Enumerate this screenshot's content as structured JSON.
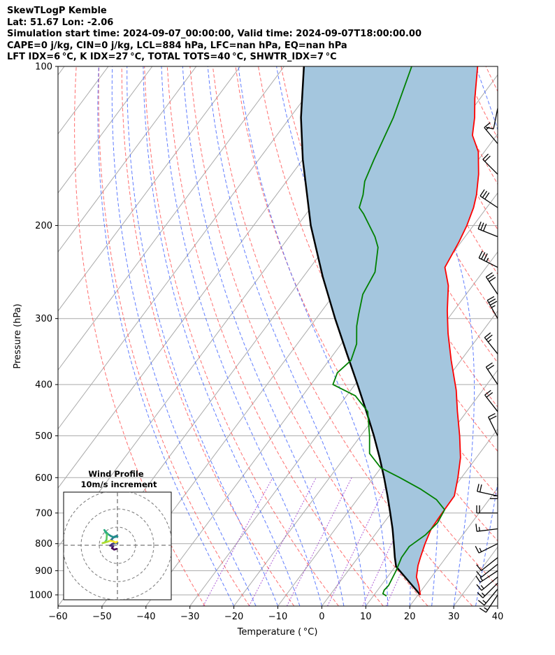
{
  "title_lines": [
    "SkewTLogP Kemble",
    "Lat: 51.67   Lon: -2.06",
    "Simulation start time: 2024-09-07_00:00:00, Valid time: 2024-09-07T18:00:00.00",
    "CAPE=0 j/kg, CIN=0 j/kg, LCL=884 hPa, LFC=nan hPa, EQ=nan hPa",
    "LFT IDX=6 °C, K IDX=27 °C, TOTAL TOTS=40 °C, SHWTR_IDX=7 °C"
  ],
  "chart_data": {
    "type": "skewt",
    "xlabel": "Temperature ( °C)",
    "ylabel": "Pressure (hPa)",
    "xlim": [
      -60,
      40
    ],
    "ylim": [
      1050,
      100
    ],
    "x_ticks": [
      "−60",
      "−50",
      "−40",
      "−30",
      "−20",
      "−10",
      "0",
      "10",
      "20",
      "30",
      "40"
    ],
    "x_tick_values": [
      -60,
      -50,
      -40,
      -30,
      -20,
      -10,
      0,
      10,
      20,
      30,
      40
    ],
    "y_ticks": [
      "100",
      "200",
      "300",
      "400",
      "500",
      "600",
      "700",
      "800",
      "900",
      "1000"
    ],
    "y_tick_values": [
      100,
      200,
      300,
      400,
      500,
      600,
      700,
      800,
      900,
      1000
    ],
    "colors": {
      "temperature": "#ff0000",
      "dewpoint": "#008000",
      "parcel": "#000000",
      "shade": "#a4c6de",
      "dry_adiabat": "#ff5555",
      "moist_adiabat": "#4466ff",
      "mixing_ratio": "#9933cc",
      "isotherm": "#aaaaaa"
    },
    "temperature": [
      {
        "p": 1000,
        "t": 20.5
      },
      {
        "p": 960,
        "t": 18.6
      },
      {
        "p": 925,
        "t": 16.6
      },
      {
        "p": 880,
        "t": 15.0
      },
      {
        "p": 850,
        "t": 14.2
      },
      {
        "p": 800,
        "t": 12.9
      },
      {
        "p": 750,
        "t": 11.8
      },
      {
        "p": 700,
        "t": 11.6
      },
      {
        "p": 650,
        "t": 11.5
      },
      {
        "p": 600,
        "t": 9.2
      },
      {
        "p": 550,
        "t": 6.4
      },
      {
        "p": 500,
        "t": 2.5
      },
      {
        "p": 450,
        "t": -2.1
      },
      {
        "p": 410,
        "t": -6.0
      },
      {
        "p": 360,
        "t": -12.2
      },
      {
        "p": 320,
        "t": -17.5
      },
      {
        "p": 290,
        "t": -21.5
      },
      {
        "p": 260,
        "t": -25.5
      },
      {
        "p": 240,
        "t": -29.4
      },
      {
        "p": 215,
        "t": -30.5
      },
      {
        "p": 200,
        "t": -31.5
      },
      {
        "p": 185,
        "t": -33.0
      },
      {
        "p": 175,
        "t": -34.5
      },
      {
        "p": 160,
        "t": -37.5
      },
      {
        "p": 145,
        "t": -41.4
      },
      {
        "p": 135,
        "t": -45.5
      },
      {
        "p": 125,
        "t": -48.0
      },
      {
        "p": 115,
        "t": -51.2
      },
      {
        "p": 100,
        "t": -56.0
      }
    ],
    "dewpoint": [
      {
        "p": 1005,
        "t": 13.0
      },
      {
        "p": 995,
        "t": 11.8
      },
      {
        "p": 980,
        "t": 11.5
      },
      {
        "p": 960,
        "t": 11.7
      },
      {
        "p": 900,
        "t": 10.9
      },
      {
        "p": 850,
        "t": 9.9
      },
      {
        "p": 810,
        "t": 9.8
      },
      {
        "p": 770,
        "t": 11.5
      },
      {
        "p": 730,
        "t": 12.2
      },
      {
        "p": 690,
        "t": 11.6
      },
      {
        "p": 660,
        "t": 8.0
      },
      {
        "p": 630,
        "t": 2.5
      },
      {
        "p": 600,
        "t": -4.0
      },
      {
        "p": 575,
        "t": -10.0
      },
      {
        "p": 540,
        "t": -15.0
      },
      {
        "p": 500,
        "t": -18.0
      },
      {
        "p": 450,
        "t": -22.5
      },
      {
        "p": 420,
        "t": -28.0
      },
      {
        "p": 400,
        "t": -35.0
      },
      {
        "p": 380,
        "t": -36.0
      },
      {
        "p": 360,
        "t": -35.0
      },
      {
        "p": 335,
        "t": -36.5
      },
      {
        "p": 310,
        "t": -39.5
      },
      {
        "p": 295,
        "t": -41.0
      },
      {
        "p": 270,
        "t": -43.5
      },
      {
        "p": 245,
        "t": -44.5
      },
      {
        "p": 220,
        "t": -48.0
      },
      {
        "p": 210,
        "t": -50.5
      },
      {
        "p": 190,
        "t": -57.0
      },
      {
        "p": 185,
        "t": -59.0
      },
      {
        "p": 175,
        "t": -60.3
      },
      {
        "p": 165,
        "t": -62.2
      },
      {
        "p": 150,
        "t": -63.8
      },
      {
        "p": 125,
        "t": -66.5
      },
      {
        "p": 100,
        "t": -71.0
      }
    ],
    "parcel": [
      {
        "p": 1000,
        "t": 20.5
      },
      {
        "p": 884,
        "t": 10.2
      },
      {
        "p": 850,
        "t": 8.4
      },
      {
        "p": 800,
        "t": 5.8
      },
      {
        "p": 750,
        "t": 3.0
      },
      {
        "p": 700,
        "t": -0.2
      },
      {
        "p": 650,
        "t": -3.7
      },
      {
        "p": 600,
        "t": -7.6
      },
      {
        "p": 550,
        "t": -12.0
      },
      {
        "p": 500,
        "t": -17.0
      },
      {
        "p": 450,
        "t": -22.8
      },
      {
        "p": 400,
        "t": -29.4
      },
      {
        "p": 350,
        "t": -37.0
      },
      {
        "p": 300,
        "t": -45.7
      },
      {
        "p": 250,
        "t": -55.6
      },
      {
        "p": 200,
        "t": -67.0
      },
      {
        "p": 150,
        "t": -80.0
      },
      {
        "p": 125,
        "t": -87.5
      },
      {
        "p": 100,
        "t": -95.5
      }
    ],
    "wind_barbs": [
      {
        "p": 1000,
        "u": 4,
        "v": 6
      },
      {
        "p": 975,
        "u": 5,
        "v": 6
      },
      {
        "p": 950,
        "u": 6,
        "v": 6
      },
      {
        "p": 925,
        "u": 6,
        "v": 5
      },
      {
        "p": 900,
        "u": 6,
        "v": 4
      },
      {
        "p": 875,
        "u": 5,
        "v": 4
      },
      {
        "p": 850,
        "u": 5,
        "v": 4
      },
      {
        "p": 800,
        "u": 6,
        "v": 3
      },
      {
        "p": 750,
        "u": 8,
        "v": 1
      },
      {
        "p": 700,
        "u": 11,
        "v": 0
      },
      {
        "p": 650,
        "u": 9,
        "v": -2
      },
      {
        "p": 600,
        "u": 0,
        "v": 8
      },
      {
        "p": 500,
        "u": 5,
        "v": -10
      },
      {
        "p": 450,
        "u": 7,
        "v": -9
      },
      {
        "p": 400,
        "u": 6,
        "v": -9
      },
      {
        "p": 350,
        "u": 8,
        "v": -10
      },
      {
        "p": 300,
        "u": 9,
        "v": -16
      },
      {
        "p": 270,
        "u": 8,
        "v": -12
      },
      {
        "p": 240,
        "u": 16,
        "v": -8
      },
      {
        "p": 210,
        "u": 15,
        "v": -6
      },
      {
        "p": 185,
        "u": 12,
        "v": -8
      },
      {
        "p": 160,
        "u": 8,
        "v": -8
      },
      {
        "p": 140,
        "u": 5,
        "v": -6
      },
      {
        "p": 120,
        "u": 1,
        "v": 5
      }
    ],
    "hodograph": {
      "title": "Wind Profile",
      "subtitle": "10m/s increment",
      "ring_spacing_ms": 10,
      "rings": 3,
      "points": [
        {
          "u": -0.5,
          "v": -2.0
        },
        {
          "u": -1.8,
          "v": -2.4
        },
        {
          "u": -3.0,
          "v": -1.6
        },
        {
          "u": -2.3,
          "v": -0.6
        },
        {
          "u": -4.0,
          "v": -0.2
        },
        {
          "u": -3.0,
          "v": 0.6
        },
        {
          "u": -2.0,
          "v": 1.0
        },
        {
          "u": 0.0,
          "v": 1.3
        },
        {
          "u": -1.5,
          "v": 1.6
        },
        {
          "u": -3.5,
          "v": 3.0
        },
        {
          "u": -1.8,
          "v": 4.6
        },
        {
          "u": -0.4,
          "v": 5.2
        },
        {
          "u": 0.0,
          "v": 4.8
        },
        {
          "u": -1.8,
          "v": 4.4
        },
        {
          "u": -3.5,
          "v": 5.0
        },
        {
          "u": -5.0,
          "v": 6.0
        },
        {
          "u": -6.5,
          "v": 7.5
        },
        {
          "u": -7.2,
          "v": 8.4
        },
        {
          "u": -5.8,
          "v": 6.0
        },
        {
          "u": -6.0,
          "v": 3.0
        },
        {
          "u": -7.0,
          "v": 1.5
        },
        {
          "u": -8.2,
          "v": 1.2
        },
        {
          "u": -7.0,
          "v": 1.5
        },
        {
          "u": -5.8,
          "v": 1.8
        },
        {
          "u": -4.0,
          "v": 2.5
        },
        {
          "u": -2.0,
          "v": 2.0
        },
        {
          "u": -1.0,
          "v": 1.5
        },
        {
          "u": -0.2,
          "v": 2.0
        }
      ]
    }
  }
}
